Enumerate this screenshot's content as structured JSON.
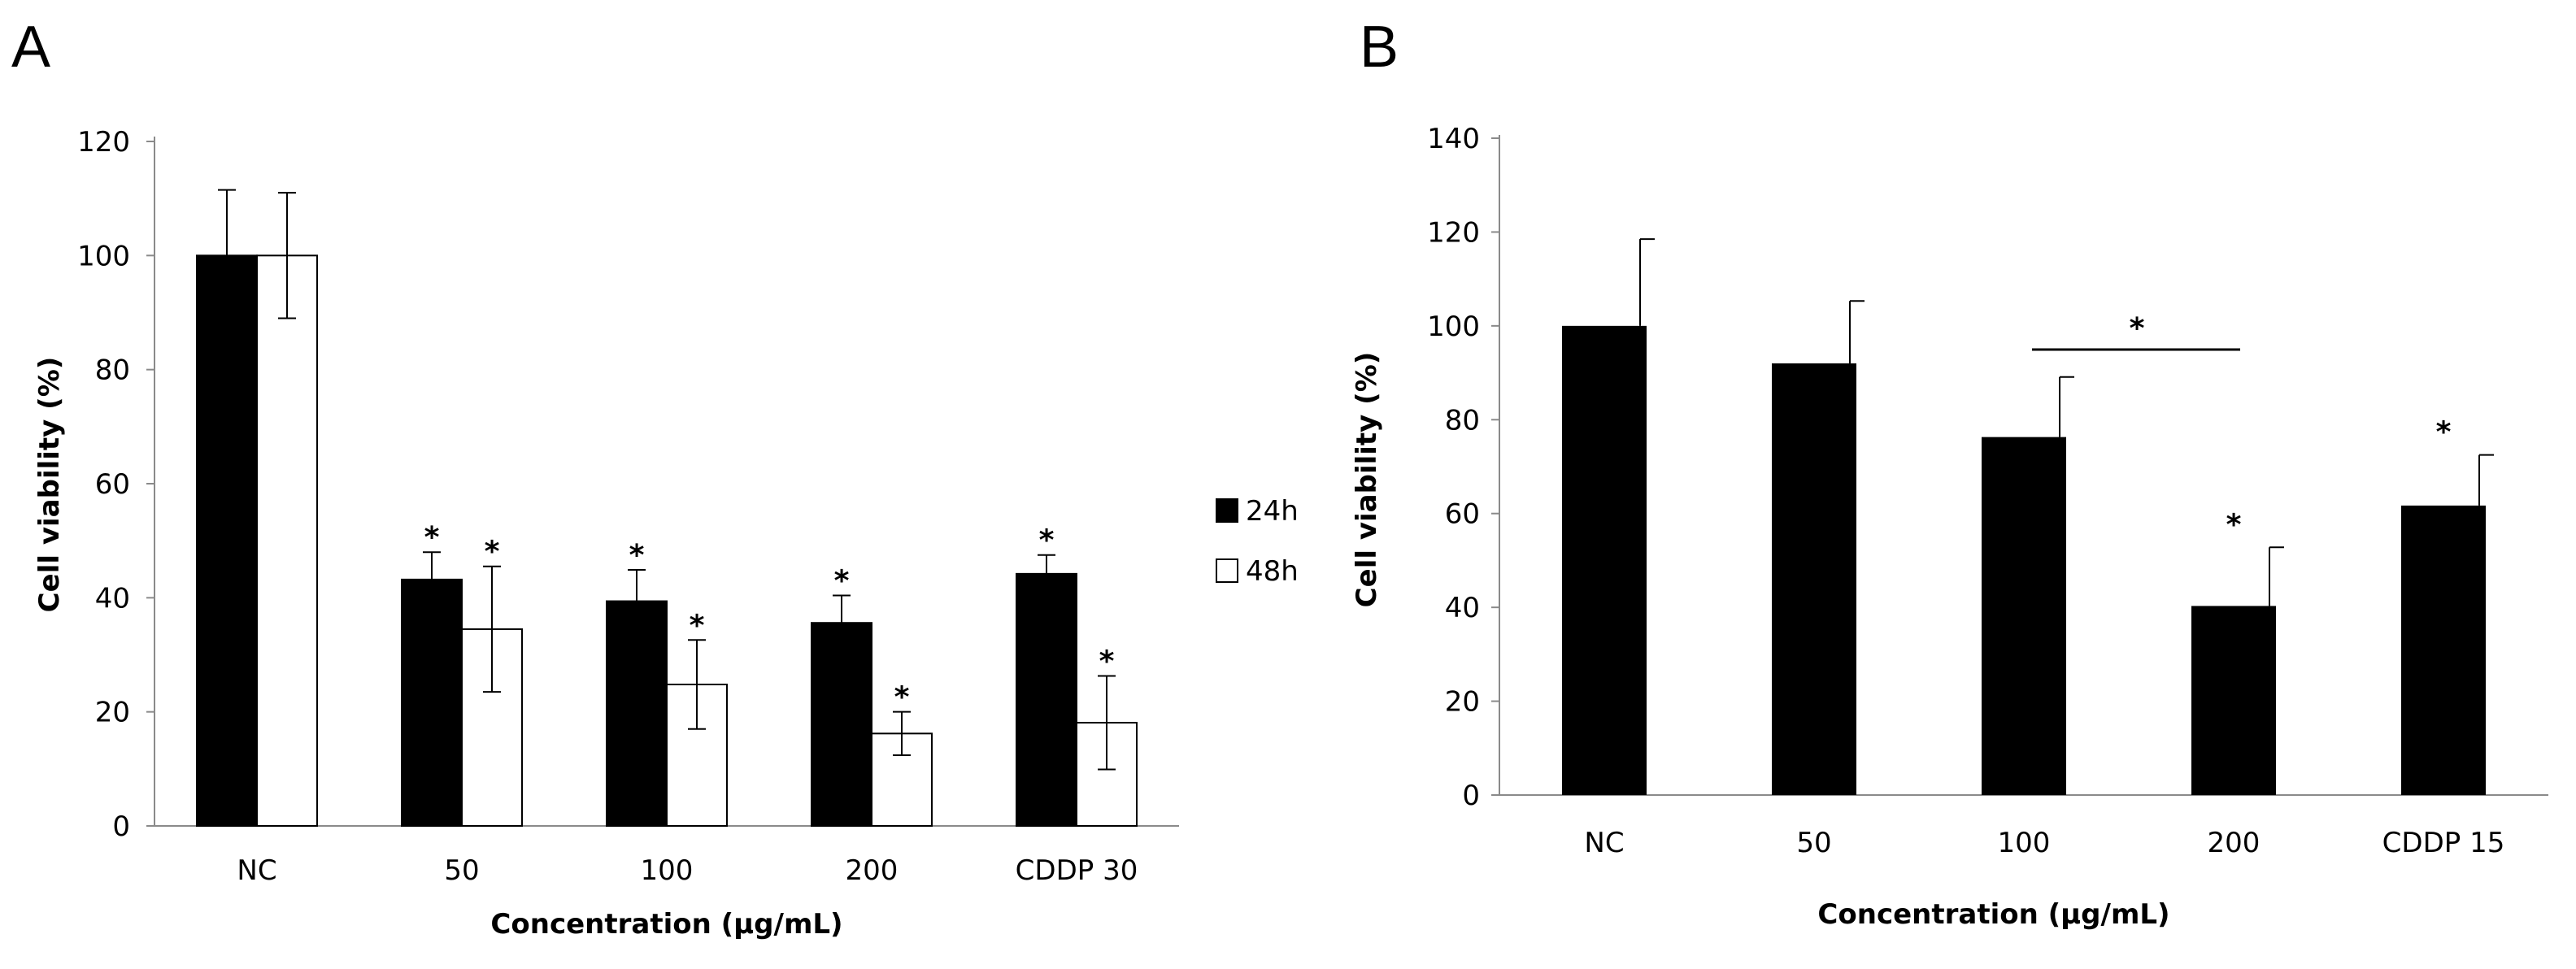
{
  "chart_data": [
    {
      "type": "bar",
      "panel": "A",
      "title": "",
      "xlabel": "Concentration (µg/mL)",
      "ylabel": "Cell viability (%)",
      "ylim": [
        0,
        120
      ],
      "yticks": [
        0,
        20,
        40,
        60,
        80,
        100,
        120
      ],
      "grid": false,
      "legend_position": "right",
      "categories": [
        "NC",
        "50",
        "100",
        "200",
        "CDDP 30"
      ],
      "series": [
        {
          "name": "24h",
          "color": "#000000",
          "values": [
            100,
            43.2,
            39.4,
            35.6,
            44.2
          ],
          "errors": [
            11.5,
            4.8,
            5.5,
            4.8,
            3.3
          ],
          "significance": [
            "",
            "*",
            "*",
            "*",
            "*"
          ]
        },
        {
          "name": "48h",
          "color": "#ffffff",
          "values": [
            100,
            34.5,
            24.8,
            16.2,
            18.1
          ],
          "errors": [
            11.0,
            11.0,
            7.8,
            3.8,
            8.2
          ],
          "significance": [
            "",
            "*",
            "*",
            "*",
            "*"
          ]
        }
      ]
    },
    {
      "type": "bar",
      "panel": "B",
      "title": "",
      "xlabel": "Concentration (µg/mL)",
      "ylabel": "Cell viability (%)",
      "ylim": [
        0,
        140
      ],
      "yticks": [
        0,
        20,
        40,
        60,
        80,
        100,
        120,
        140
      ],
      "grid": false,
      "categories": [
        "NC",
        "50",
        "100",
        "200",
        "CDDP 15"
      ],
      "series": [
        {
          "name": "",
          "color": "#000000",
          "values": [
            100,
            92,
            76.3,
            40.3,
            61.7
          ],
          "errors": [
            18.5,
            13.3,
            12.8,
            12.5,
            10.8
          ],
          "significance": [
            "",
            "",
            "",
            "*",
            "*"
          ]
        }
      ],
      "bracket": {
        "from": "100",
        "to": "200",
        "label": "*"
      }
    }
  ]
}
